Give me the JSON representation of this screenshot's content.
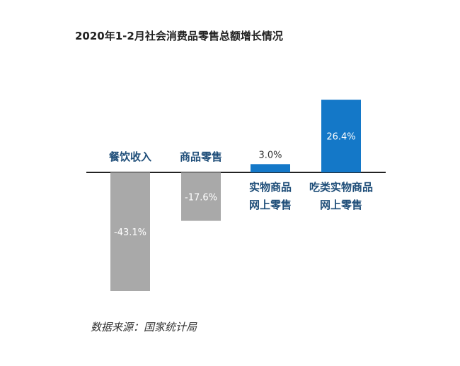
{
  "chart_data": {
    "type": "bar",
    "title": "2020年1-2月社会消费品零售总额增长情况",
    "categories": [
      [
        "餐饮收入"
      ],
      [
        "商品零售"
      ],
      [
        "实物商品",
        "网上零售"
      ],
      [
        "吃类实物商品",
        "网上零售"
      ]
    ],
    "values": [
      -43.1,
      -17.6,
      3.0,
      26.4
    ],
    "value_labels": [
      "-43.1%",
      "-17.6%",
      "3.0%",
      "26.4%"
    ],
    "unit": "%",
    "colors": {
      "negative": "#a9a9a9",
      "positive": "#1478c8",
      "category_label": "#1f4e79",
      "axis": "#222222"
    },
    "ylim": [
      -43.1,
      26.4
    ],
    "grid": false,
    "legend": "none"
  },
  "source": "数据来源：国家统计局"
}
